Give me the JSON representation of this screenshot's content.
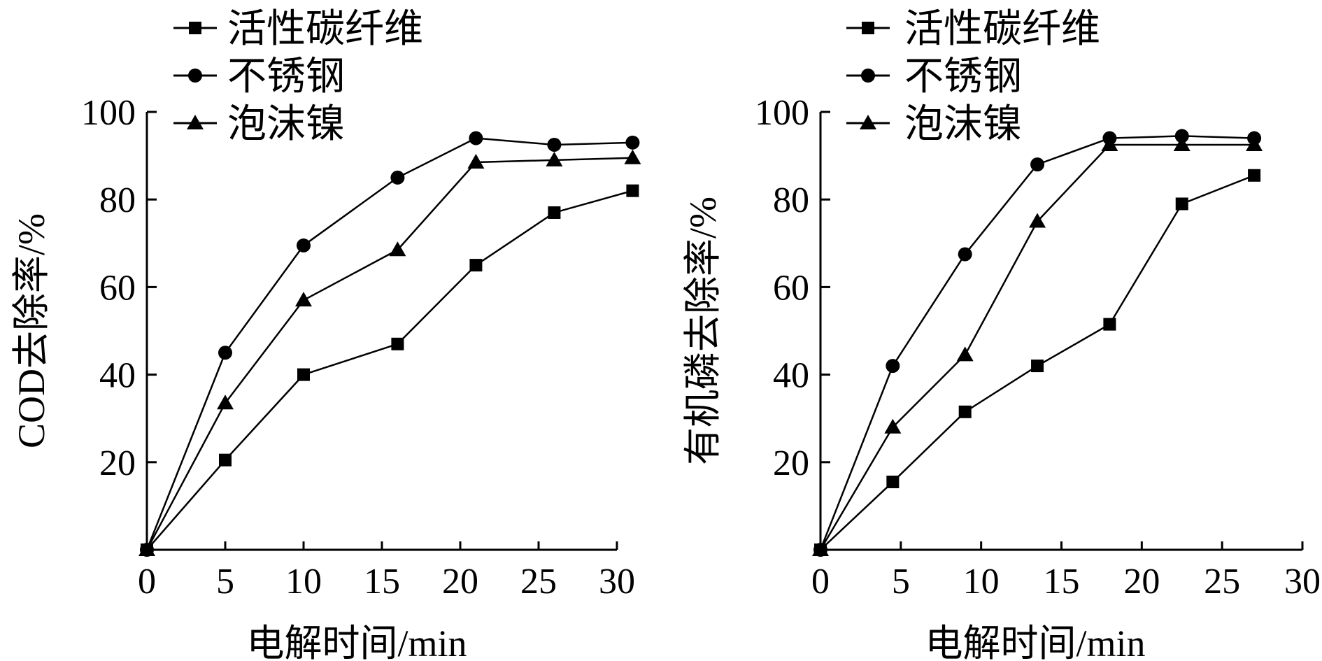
{
  "chart_data": [
    {
      "type": "line",
      "xlabel": "电解时间/min",
      "ylabel": "COD去除率/%",
      "xlim": [
        0,
        30
      ],
      "ylim": [
        0,
        100
      ],
      "xticks": [
        "0",
        "5",
        "10",
        "15",
        "20",
        "25",
        "30"
      ],
      "yticks": [
        "20",
        "40",
        "60",
        "80",
        "100"
      ],
      "grid": false,
      "legend_position": "top-left",
      "series": [
        {
          "name": "活性碳纤维",
          "marker": "square",
          "points": [
            [
              0,
              0
            ],
            [
              5,
              20.5
            ],
            [
              10,
              40
            ],
            [
              16,
              47
            ],
            [
              21,
              65
            ],
            [
              26,
              77
            ],
            [
              31,
              82
            ]
          ]
        },
        {
          "name": "不锈钢",
          "marker": "circle",
          "points": [
            [
              0,
              0
            ],
            [
              5,
              45
            ],
            [
              10,
              69.5
            ],
            [
              16,
              85
            ],
            [
              21,
              94
            ],
            [
              26,
              92.5
            ],
            [
              31,
              93
            ]
          ]
        },
        {
          "name": "泡沫镍",
          "marker": "triangle",
          "points": [
            [
              0,
              0
            ],
            [
              5,
              33.5
            ],
            [
              10,
              57
            ],
            [
              16,
              68.5
            ],
            [
              21,
              88.5
            ],
            [
              26,
              89
            ],
            [
              31,
              89.5
            ]
          ]
        }
      ]
    },
    {
      "type": "line",
      "xlabel": "电解时间/min",
      "ylabel": "有机磷去除率/%",
      "xlim": [
        0,
        30
      ],
      "ylim": [
        0,
        100
      ],
      "xticks": [
        "0",
        "5",
        "10",
        "15",
        "20",
        "25",
        "30"
      ],
      "yticks": [
        "20",
        "40",
        "60",
        "80",
        "100"
      ],
      "grid": false,
      "legend_position": "top-left",
      "series": [
        {
          "name": "活性碳纤维",
          "marker": "square",
          "points": [
            [
              0,
              0
            ],
            [
              4.5,
              15.5
            ],
            [
              9,
              31.5
            ],
            [
              13.5,
              42
            ],
            [
              18,
              51.5
            ],
            [
              22.5,
              79
            ],
            [
              27,
              85.5
            ]
          ]
        },
        {
          "name": "不锈钢",
          "marker": "circle",
          "points": [
            [
              0,
              0
            ],
            [
              4.5,
              42
            ],
            [
              9,
              67.5
            ],
            [
              13.5,
              88
            ],
            [
              18,
              94
            ],
            [
              22.5,
              94.5
            ],
            [
              27,
              94
            ]
          ]
        },
        {
          "name": "泡沫镍",
          "marker": "triangle",
          "points": [
            [
              0,
              0
            ],
            [
              4.5,
              28
            ],
            [
              9,
              44.5
            ],
            [
              13.5,
              75
            ],
            [
              18,
              92.5
            ],
            [
              22.5,
              92.5
            ],
            [
              27,
              92.5
            ]
          ]
        }
      ]
    }
  ]
}
